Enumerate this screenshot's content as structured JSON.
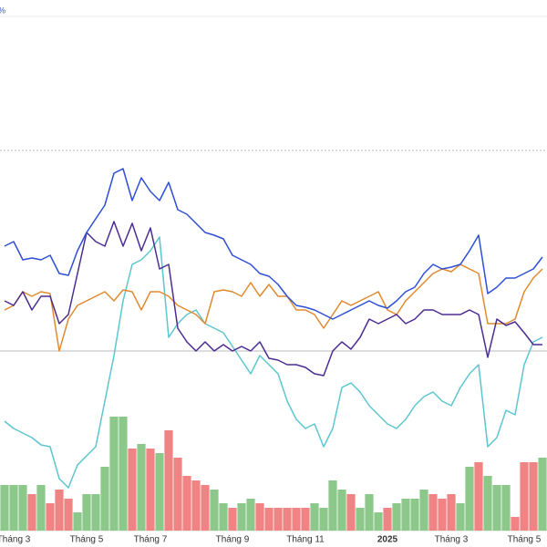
{
  "chart_data": {
    "type": "line",
    "header_text": "%",
    "categories": [
      null,
      "Tháng 3",
      null,
      null,
      null,
      null,
      null,
      null,
      null,
      "Tháng 5",
      null,
      null,
      null,
      null,
      null,
      null,
      "Tháng 7",
      null,
      null,
      null,
      null,
      null,
      null,
      null,
      null,
      "Tháng 9",
      null,
      null,
      null,
      null,
      null,
      null,
      null,
      "Tháng 11",
      null,
      null,
      null,
      null,
      null,
      null,
      null,
      null,
      "2025",
      null,
      null,
      null,
      null,
      null,
      null,
      "Tháng 3",
      null,
      null,
      null,
      null,
      null,
      null,
      null,
      "Tháng 5",
      null,
      null
    ],
    "ylim": [
      0,
      582
    ],
    "series": [
      {
        "type": "bar",
        "colors": [
          "#8cc88a",
          "#8cc88a",
          "#8cc88a",
          "#f08484",
          "#8cc88a",
          "#f08484",
          "#f08484",
          "#f08484",
          "#8cc88a",
          "#8cc88a",
          "#8cc88a",
          "#8cc88a",
          "#8cc88a",
          "#8cc88a",
          "#f08484",
          "#8cc88a",
          "#f08484",
          "#8cc88a",
          "#f08484",
          "#f08484",
          "#f08484",
          "#f08484",
          "#f08484",
          "#8cc88a",
          "#8cc88a",
          "#f08484",
          "#8cc88a",
          "#8cc88a",
          "#f08484",
          "#f08484",
          "#f08484",
          "#f08484",
          "#f08484",
          "#f08484",
          "#8cc88a",
          "#8cc88a",
          "#8cc88a",
          "#8cc88a",
          "#f08484",
          "#8cc88a",
          "#8cc88a",
          "#8cc88a",
          "#f08484",
          "#8cc88a",
          "#8cc88a",
          "#8cc88a",
          "#8cc88a",
          "#f08484",
          "#f08484",
          "#f08484",
          "#8cc88a",
          "#8cc88a",
          "#f08484",
          "#8cc88a",
          "#8cc88a",
          "#8cc88a",
          "#f08484",
          "#f08484",
          "#f08484",
          "#8cc88a"
        ],
        "values": [
          50,
          50,
          50,
          40,
          50,
          30,
          45,
          35,
          20,
          40,
          40,
          70,
          125,
          125,
          90,
          95,
          90,
          85,
          110,
          80,
          60,
          55,
          50,
          45,
          30,
          25,
          30,
          35,
          30,
          25,
          25,
          25,
          25,
          25,
          30,
          25,
          55,
          45,
          40,
          25,
          40,
          20,
          25,
          30,
          35,
          35,
          45,
          40,
          35,
          40,
          30,
          70,
          75,
          60,
          50,
          50,
          15,
          75,
          75,
          80
        ]
      },
      {
        "type": "line",
        "color": "#5cc6d0",
        "values": [
          120,
          112,
          107,
          102,
          94,
          92,
          57,
          47,
          72,
          82,
          92,
          142,
          192,
          252,
          292,
          297,
          307,
          322,
          212,
          227,
          237,
          242,
          227,
          222,
          217,
          202,
          187,
          172,
          192,
          182,
          172,
          142,
          122,
          112,
          117,
          92,
          112,
          157,
          162,
          152,
          137,
          127,
          117,
          112,
          122,
          137,
          147,
          152,
          142,
          137,
          157,
          172,
          182,
          92,
          102,
          132,
          127,
          182,
          207,
          212
        ]
      },
      {
        "type": "line",
        "color": "#e08a2e",
        "values": [
          242,
          247,
          262,
          257,
          262,
          260,
          197,
          232,
          247,
          252,
          257,
          262,
          252,
          264,
          262,
          242,
          262,
          262,
          257,
          247,
          242,
          237,
          227,
          262,
          264,
          262,
          257,
          272,
          257,
          270,
          257,
          257,
          242,
          242,
          237,
          222,
          237,
          252,
          247,
          252,
          257,
          262,
          242,
          237,
          252,
          262,
          272,
          282,
          287,
          284,
          292,
          287,
          282,
          227,
          227,
          227,
          232,
          262,
          277,
          287
        ]
      },
      {
        "type": "line",
        "color": "#4b2c91",
        "values": [
          252,
          247,
          262,
          242,
          257,
          257,
          227,
          237,
          282,
          327,
          317,
          312,
          339,
          312,
          337,
          307,
          332,
          287,
          292,
          222,
          207,
          197,
          207,
          197,
          204,
          197,
          202,
          197,
          207,
          189,
          187,
          182,
          182,
          179,
          172,
          170,
          197,
          207,
          199,
          212,
          232,
          227,
          232,
          237,
          227,
          232,
          242,
          242,
          237,
          237,
          237,
          242,
          237,
          190,
          232,
          225,
          229,
          217,
          204,
          204
        ]
      },
      {
        "type": "line",
        "color": "#2e4fd6",
        "values": [
          312,
          317,
          297,
          299,
          297,
          302,
          282,
          280,
          307,
          327,
          342,
          357,
          392,
          397,
          362,
          387,
          372,
          362,
          382,
          352,
          347,
          337,
          327,
          324,
          320,
          302,
          297,
          292,
          282,
          279,
          270,
          257,
          247,
          245,
          242,
          237,
          232,
          237,
          242,
          247,
          252,
          247,
          244,
          252,
          262,
          267,
          282,
          292,
          287,
          289,
          292,
          307,
          324,
          260,
          267,
          277,
          277,
          282,
          287,
          300
        ]
      }
    ]
  }
}
